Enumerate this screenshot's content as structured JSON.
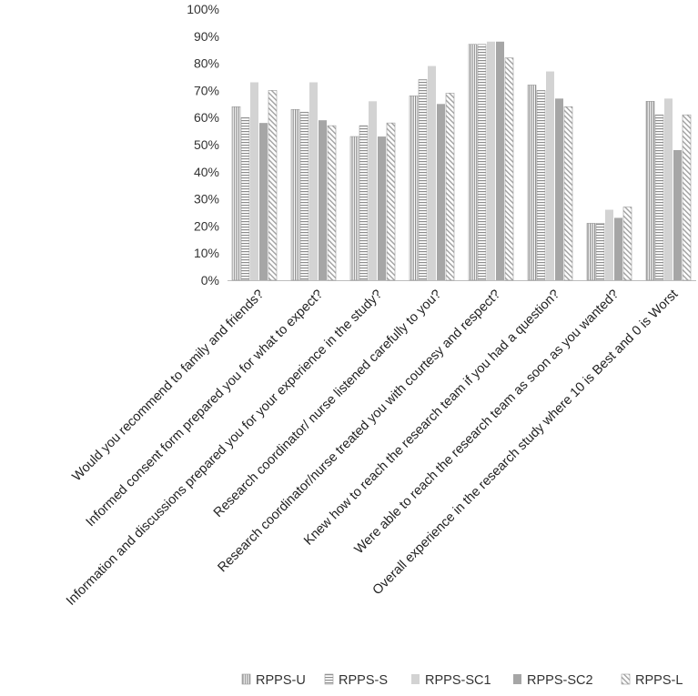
{
  "chart_data": {
    "type": "bar",
    "title": "",
    "xlabel": "",
    "ylabel": "",
    "ylim": [
      0,
      100
    ],
    "y_ticks": [
      "0%",
      "10%",
      "20%",
      "30%",
      "40%",
      "50%",
      "60%",
      "70%",
      "80%",
      "90%",
      "100%"
    ],
    "grid": false,
    "legend_position": "bottom",
    "categories": [
      "Would you recommend to family and friends?",
      "Informed consent form prepared you for what to expect?",
      "Information and discussions prepared you for your experience in the study?",
      "Research coordinator/ nurse listened carefully to you?",
      "Research coordinator/nurse treated you with courtesy and respect?",
      "Knew how to reach the research team if you had a question?",
      "Were able to reach the research team as soon as you wanted?",
      "Overall experience in the research study where 10 is Best and 0 is Worst"
    ],
    "series": [
      {
        "name": "RPPS-U",
        "pattern": "vertical",
        "color": "#9a9a9a",
        "values": [
          64,
          63,
          53,
          68,
          87,
          72,
          21,
          66
        ]
      },
      {
        "name": "RPPS-S",
        "pattern": "horizontal",
        "color": "#8a8a8a",
        "values": [
          60,
          62,
          57,
          74,
          87,
          70,
          21,
          61
        ]
      },
      {
        "name": "RPPS-SC1",
        "pattern": "solid-light",
        "color": "#d3d3d3",
        "values": [
          73,
          73,
          66,
          79,
          88,
          77,
          26,
          67
        ]
      },
      {
        "name": "RPPS-SC2",
        "pattern": "solid-dark",
        "color": "#a6a6a6",
        "values": [
          58,
          59,
          53,
          65,
          88,
          67,
          23,
          48
        ]
      },
      {
        "name": "RPPS-L",
        "pattern": "diagonal",
        "color": "#9a9a9a",
        "values": [
          70,
          57,
          58,
          69,
          82,
          64,
          27,
          61
        ]
      }
    ]
  }
}
